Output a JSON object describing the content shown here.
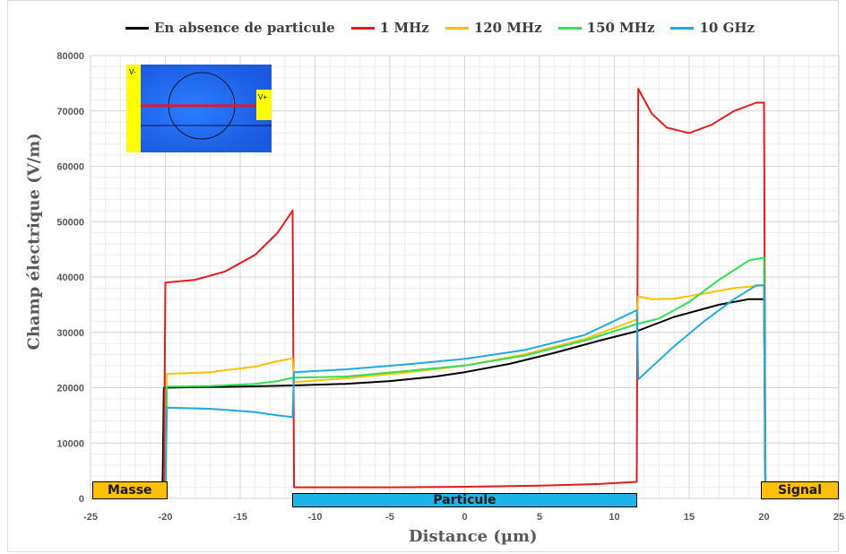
{
  "chart_data": {
    "type": "line",
    "xlabel": "Distance (µm)",
    "ylabel": "Champ électrique (V/m)",
    "xlim": [
      -25,
      25
    ],
    "ylim": [
      0,
      80000
    ],
    "xticks": [
      -25,
      -20,
      -15,
      -10,
      -5,
      0,
      5,
      10,
      15,
      20,
      25
    ],
    "yticks": [
      0,
      10000,
      20000,
      30000,
      40000,
      50000,
      60000,
      70000,
      80000
    ],
    "grid": true,
    "legend_position": "top",
    "series": [
      {
        "name": "En absence de particule",
        "color": "#000000",
        "points": [
          [
            -20.2,
            0
          ],
          [
            -20.1,
            20000
          ],
          [
            -18,
            20100
          ],
          [
            -15,
            20200
          ],
          [
            -11.5,
            20400
          ],
          [
            -8,
            20700
          ],
          [
            -5,
            21200
          ],
          [
            -2,
            22000
          ],
          [
            0,
            22800
          ],
          [
            3,
            24300
          ],
          [
            6,
            26300
          ],
          [
            9,
            28500
          ],
          [
            11.5,
            30200
          ],
          [
            14,
            32800
          ],
          [
            17,
            35000
          ],
          [
            19,
            36000
          ],
          [
            20,
            36000
          ],
          [
            20.1,
            0
          ]
        ]
      },
      {
        "name": "1 MHz",
        "color": "#e41a1c",
        "points": [
          [
            -20.1,
            0
          ],
          [
            -20,
            39000
          ],
          [
            -18,
            39500
          ],
          [
            -16,
            41000
          ],
          [
            -14,
            44000
          ],
          [
            -12.5,
            48000
          ],
          [
            -11.5,
            52000
          ],
          [
            -11.4,
            2000
          ],
          [
            -5,
            2000
          ],
          [
            0,
            2100
          ],
          [
            5,
            2300
          ],
          [
            9,
            2600
          ],
          [
            11.5,
            3000
          ],
          [
            11.6,
            74000
          ],
          [
            12.5,
            69500
          ],
          [
            13.5,
            67000
          ],
          [
            15,
            66000
          ],
          [
            16.5,
            67500
          ],
          [
            18,
            70000
          ],
          [
            19.5,
            71500
          ],
          [
            20,
            71500
          ],
          [
            20.1,
            0
          ]
        ]
      },
      {
        "name": "120 MHz",
        "color": "#ffc000",
        "points": [
          [
            -20,
            0
          ],
          [
            -19.9,
            22500
          ],
          [
            -17,
            22800
          ],
          [
            -14,
            23800
          ],
          [
            -12.5,
            24800
          ],
          [
            -11.5,
            25300
          ],
          [
            -11.4,
            21000
          ],
          [
            -8,
            21700
          ],
          [
            -4,
            22700
          ],
          [
            0,
            24000
          ],
          [
            4,
            26000
          ],
          [
            8,
            28800
          ],
          [
            11.5,
            32300
          ],
          [
            11.6,
            36500
          ],
          [
            12.5,
            36000
          ],
          [
            14,
            36100
          ],
          [
            16,
            37000
          ],
          [
            18,
            38000
          ],
          [
            20,
            38500
          ],
          [
            20.1,
            0
          ]
        ]
      },
      {
        "name": "150 MHz",
        "color": "#33dd55",
        "points": [
          [
            -20,
            0
          ],
          [
            -19.9,
            20200
          ],
          [
            -17,
            20300
          ],
          [
            -14,
            20700
          ],
          [
            -12.5,
            21200
          ],
          [
            -11.5,
            21800
          ],
          [
            -8,
            22000
          ],
          [
            -4,
            23000
          ],
          [
            0,
            24000
          ],
          [
            4,
            25800
          ],
          [
            8,
            28500
          ],
          [
            11.5,
            31500
          ],
          [
            13,
            32500
          ],
          [
            15,
            35500
          ],
          [
            17,
            39500
          ],
          [
            19,
            43000
          ],
          [
            20,
            43500
          ],
          [
            20.1,
            0
          ]
        ]
      },
      {
        "name": "10 GHz",
        "color": "#1fa9e0",
        "points": [
          [
            -20,
            0
          ],
          [
            -19.9,
            16400
          ],
          [
            -17,
            16200
          ],
          [
            -14,
            15600
          ],
          [
            -12.5,
            15000
          ],
          [
            -11.5,
            14700
          ],
          [
            -11.4,
            22800
          ],
          [
            -8,
            23300
          ],
          [
            -4,
            24200
          ],
          [
            0,
            25200
          ],
          [
            4,
            26800
          ],
          [
            8,
            29500
          ],
          [
            11.5,
            34000
          ],
          [
            11.6,
            21500
          ],
          [
            14,
            27500
          ],
          [
            16,
            32000
          ],
          [
            18,
            36000
          ],
          [
            19.5,
            38500
          ],
          [
            20,
            38500
          ],
          [
            20.1,
            0
          ]
        ]
      }
    ]
  },
  "annotations": {
    "masse": "Masse",
    "particule": "Particule",
    "signal": "Signal"
  },
  "inset": {
    "label_left": "V-",
    "label_right": "V+"
  }
}
